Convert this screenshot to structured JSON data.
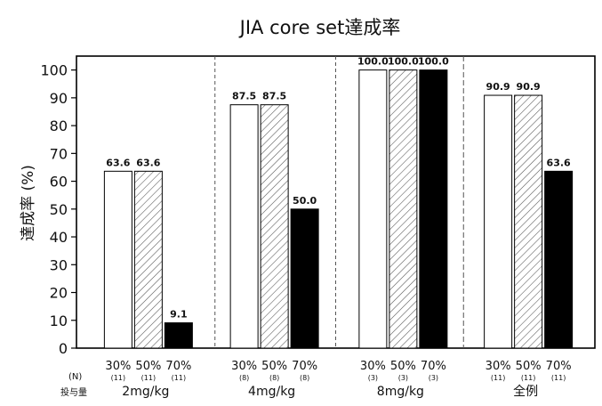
{
  "chart_data": {
    "type": "bar",
    "title": "JIA core set達成率",
    "ylabel": "達成率 (%)",
    "ylim": [
      0,
      105
    ],
    "yticks": [
      0,
      10,
      20,
      30,
      40,
      50,
      60,
      70,
      80,
      90,
      100
    ],
    "grid": false,
    "row_labels": {
      "n": "(N)",
      "dose": "投与量"
    },
    "groups": [
      {
        "label": "2mg/kg",
        "bars": [
          {
            "pct": "30%",
            "n": "(11)",
            "value": 63.6,
            "value_label": "63.6",
            "fill": "white"
          },
          {
            "pct": "50%",
            "n": "(11)",
            "value": 63.6,
            "value_label": "63.6",
            "fill": "hatch"
          },
          {
            "pct": "70%",
            "n": "(11)",
            "value": 9.1,
            "value_label": "9.1",
            "fill": "black"
          }
        ]
      },
      {
        "label": "4mg/kg",
        "bars": [
          {
            "pct": "30%",
            "n": "(8)",
            "value": 87.5,
            "value_label": "87.5",
            "fill": "white"
          },
          {
            "pct": "50%",
            "n": "(8)",
            "value": 87.5,
            "value_label": "87.5",
            "fill": "hatch"
          },
          {
            "pct": "70%",
            "n": "(8)",
            "value": 50.0,
            "value_label": "50.0",
            "fill": "black"
          }
        ]
      },
      {
        "label": "8mg/kg",
        "bars": [
          {
            "pct": "30%",
            "n": "(3)",
            "value": 100.0,
            "value_label": "100.0",
            "fill": "white"
          },
          {
            "pct": "50%",
            "n": "(3)",
            "value": 100.0,
            "value_label": "100.0",
            "fill": "hatch"
          },
          {
            "pct": "70%",
            "n": "(3)",
            "value": 100.0,
            "value_label": "100.0",
            "fill": "black"
          }
        ]
      },
      {
        "label": "全例",
        "bars": [
          {
            "pct": "30%",
            "n": "(11)",
            "value": 90.9,
            "value_label": "90.9",
            "fill": "white"
          },
          {
            "pct": "50%",
            "n": "(11)",
            "value": 90.9,
            "value_label": "90.9",
            "fill": "hatch"
          },
          {
            "pct": "70%",
            "n": "(11)",
            "value": 63.6,
            "value_label": "63.6",
            "fill": "black"
          }
        ]
      }
    ]
  }
}
